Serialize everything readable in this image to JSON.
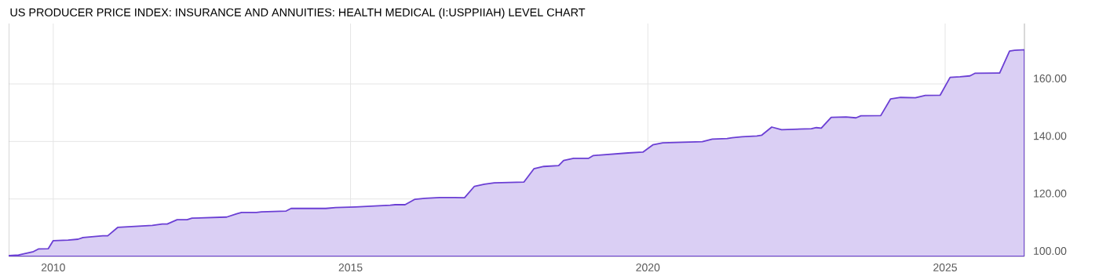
{
  "chart_data": {
    "type": "area",
    "title": "US PRODUCER PRICE INDEX: INSURANCE AND ANNUITIES: HEALTH MEDICAL (I:USPPIIAH) LEVEL CHART",
    "x": [
      "2009-04",
      "2009-06",
      "2009-08",
      "2009-09",
      "2009-10",
      "2009-12",
      "2010-01",
      "2010-04",
      "2010-06",
      "2010-07",
      "2010-11",
      "2010-12",
      "2011-02",
      "2011-09",
      "2011-11",
      "2011-12",
      "2012-02",
      "2012-04",
      "2012-05",
      "2012-12",
      "2013-02",
      "2013-03",
      "2013-06",
      "2013-07",
      "2013-12",
      "2014-01",
      "2014-08",
      "2014-10",
      "2015-02",
      "2015-09",
      "2015-10",
      "2015-12",
      "2016-02",
      "2016-04",
      "2016-07",
      "2016-10",
      "2016-12",
      "2017-02",
      "2017-04",
      "2017-06",
      "2017-12",
      "2018-02",
      "2018-04",
      "2018-07",
      "2018-08",
      "2018-10",
      "2019-01",
      "2019-02",
      "2019-09",
      "2019-12",
      "2020-02",
      "2020-04",
      "2020-12",
      "2021-02",
      "2021-05",
      "2021-06",
      "2021-08",
      "2021-11",
      "2021-12",
      "2022-02",
      "2022-04",
      "2022-10",
      "2022-11",
      "2022-12",
      "2023-02",
      "2023-05",
      "2023-07",
      "2023-08",
      "2023-12",
      "2024-02",
      "2024-04",
      "2024-07",
      "2024-09",
      "2024-12",
      "2025-02",
      "2025-04",
      "2025-06",
      "2025-07",
      "2025-12",
      "2026-02",
      "2026-03",
      "2026-05"
    ],
    "series": [
      {
        "color": "#6b3fd4",
        "values": [
          100.3,
          100.5,
          101.3,
          101.7,
          102.6,
          102.7,
          105.5,
          105.7,
          106.0,
          106.6,
          107.2,
          107.2,
          110.1,
          110.8,
          111.3,
          111.3,
          112.8,
          112.8,
          113.3,
          113.7,
          114.8,
          115.3,
          115.3,
          115.5,
          115.8,
          116.7,
          116.7,
          117.0,
          117.2,
          117.8,
          118.0,
          118.0,
          119.9,
          120.2,
          120.5,
          120.5,
          120.4,
          124.4,
          125.1,
          125.6,
          125.9,
          130.5,
          131.3,
          131.6,
          133.4,
          134.1,
          134.1,
          135.1,
          136.0,
          136.3,
          138.8,
          139.5,
          139.9,
          140.8,
          141.0,
          141.3,
          141.6,
          141.9,
          142.2,
          145.0,
          144.1,
          144.4,
          144.8,
          144.6,
          148.4,
          148.5,
          148.2,
          148.9,
          149.0,
          154.8,
          155.3,
          155.2,
          156.0,
          156.1,
          162.3,
          162.5,
          162.8,
          163.7,
          163.8,
          171.4,
          171.7,
          171.9
        ]
      }
    ],
    "xlim": [
      "2009-04",
      "2026-05"
    ],
    "ylim": [
      100,
      181
    ],
    "xticks": [
      "2010",
      "2015",
      "2020",
      "2025"
    ],
    "yticks": [
      {
        "value": 100,
        "label": "100.00"
      },
      {
        "value": 120,
        "label": "120.00"
      },
      {
        "value": 140,
        "label": "140.00"
      },
      {
        "value": 160,
        "label": "160.00"
      }
    ],
    "grid": true
  }
}
